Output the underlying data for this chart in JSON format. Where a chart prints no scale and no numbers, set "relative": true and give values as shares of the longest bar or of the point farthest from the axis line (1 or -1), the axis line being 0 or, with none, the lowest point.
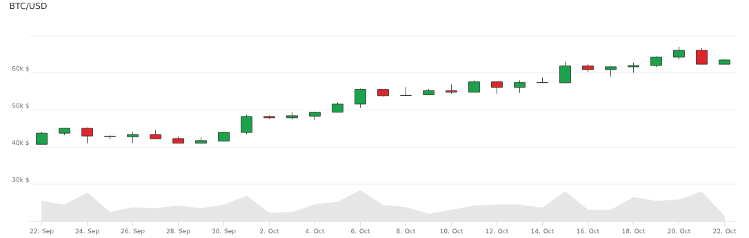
{
  "chart_data": [
    {
      "type": "candlestick",
      "title": "BTC/USD",
      "categories": [
        null,
        null,
        null,
        null,
        null,
        null,
        null,
        null,
        null,
        null,
        null,
        null,
        null,
        null,
        null,
        null,
        null,
        null,
        null,
        null,
        null,
        null,
        null,
        null,
        null,
        null,
        null,
        null,
        null,
        null,
        null
      ],
      "ohlc": [
        [
          40.75,
          44.1,
          40.75,
          43.75
        ],
        [
          43.75,
          45.07,
          43.3,
          45.07
        ],
        [
          45.07,
          45.3,
          41.05,
          43.0
        ],
        [
          42.85,
          43.2,
          42.1,
          42.95
        ],
        [
          42.8,
          44.1,
          41.05,
          43.4
        ],
        [
          43.4,
          44.55,
          42.25,
          42.25
        ],
        [
          42.3,
          42.8,
          41.05,
          41.05
        ],
        [
          41.05,
          42.7,
          41.05,
          41.75
        ],
        [
          41.6,
          44.1,
          41.6,
          44.0
        ],
        [
          43.95,
          48.7,
          43.5,
          48.25
        ],
        [
          48.25,
          48.5,
          47.6,
          47.9
        ],
        [
          47.9,
          49.4,
          47.45,
          48.45
        ],
        [
          48.35,
          49.6,
          47.25,
          49.4
        ],
        [
          49.4,
          52.05,
          49.4,
          51.6
        ],
        [
          51.6,
          55.8,
          50.6,
          55.55
        ],
        [
          55.55,
          55.55,
          53.6,
          53.85
        ],
        [
          53.9,
          56.2,
          53.9,
          53.95
        ],
        [
          54.1,
          55.65,
          54.1,
          55.2
        ],
        [
          55.2,
          56.9,
          54.4,
          54.8
        ],
        [
          54.8,
          58.0,
          54.8,
          57.6
        ],
        [
          57.6,
          57.85,
          54.4,
          56.1
        ],
        [
          56.1,
          58.0,
          54.6,
          57.4
        ],
        [
          57.4,
          58.75,
          57.3,
          57.45
        ],
        [
          57.35,
          63.05,
          57.15,
          61.9
        ],
        [
          61.9,
          62.45,
          60.2,
          60.9
        ],
        [
          60.9,
          61.8,
          59.0,
          61.65
        ],
        [
          61.65,
          62.8,
          60.05,
          62.0
        ],
        [
          62.0,
          64.5,
          61.6,
          64.25
        ],
        [
          64.25,
          67.1,
          63.6,
          66.1
        ],
        [
          66.1,
          66.7,
          62.35,
          62.35
        ],
        [
          62.35,
          63.7,
          62.35,
          63.5
        ]
      ],
      "colors": [
        "#1aa34a",
        "#1aa34a",
        "#e0262a",
        "#1aa34a",
        "#1aa34a",
        "#e0262a",
        "#e0262a",
        "#1aa34a",
        "#1aa34a",
        "#1aa34a",
        "#e0262a",
        "#1aa34a",
        "#1aa34a",
        "#1aa34a",
        "#1aa34a",
        "#e0262a",
        "#1aa34a",
        "#1aa34a",
        "#e0262a",
        "#1aa34a",
        "#e0262a",
        "#1aa34a",
        "#1aa34a",
        "#1aa34a",
        "#e0262a",
        "#1aa34a",
        "#1aa34a",
        "#1aa34a",
        "#1aa34a",
        "#e0262a",
        "#1aa34a"
      ],
      "ylim": [
        30,
        70
      ],
      "yticks": [
        {
          "value": 30,
          "label": "30k $"
        },
        {
          "value": 40,
          "label": "40k $"
        },
        {
          "value": 50,
          "label": "50k $"
        },
        {
          "value": 60,
          "label": "60k $"
        },
        {
          "value": 70,
          "label": null
        }
      ],
      "grid": "y"
    },
    {
      "type": "area",
      "categories": [
        "22. Sep",
        null,
        "24. Sep",
        null,
        "26. Sep",
        null,
        "28. Sep",
        null,
        "30. Sep",
        null,
        "2. Oct",
        null,
        "4. Oct",
        null,
        "6. Oct",
        null,
        "8. Oct",
        null,
        "10. Oct",
        null,
        "12. Oct",
        null,
        "14. Oct",
        null,
        "16. Oct",
        null,
        "18. Oct",
        null,
        "20. Oct",
        null,
        "22. Oct"
      ],
      "values": [
        0.66,
        0.54,
        0.93,
        0.3,
        0.45,
        0.42,
        0.51,
        0.42,
        0.54,
        0.83,
        0.27,
        0.3,
        0.55,
        0.63,
        1,
        0.53,
        0.46,
        0.24,
        0.37,
        0.51,
        0.54,
        0.54,
        0.44,
        0.97,
        0.37,
        0.37,
        0.78,
        0.66,
        0.7,
        0.96,
        0.18
      ],
      "color": "#e6e6e6",
      "relative": true
    }
  ]
}
